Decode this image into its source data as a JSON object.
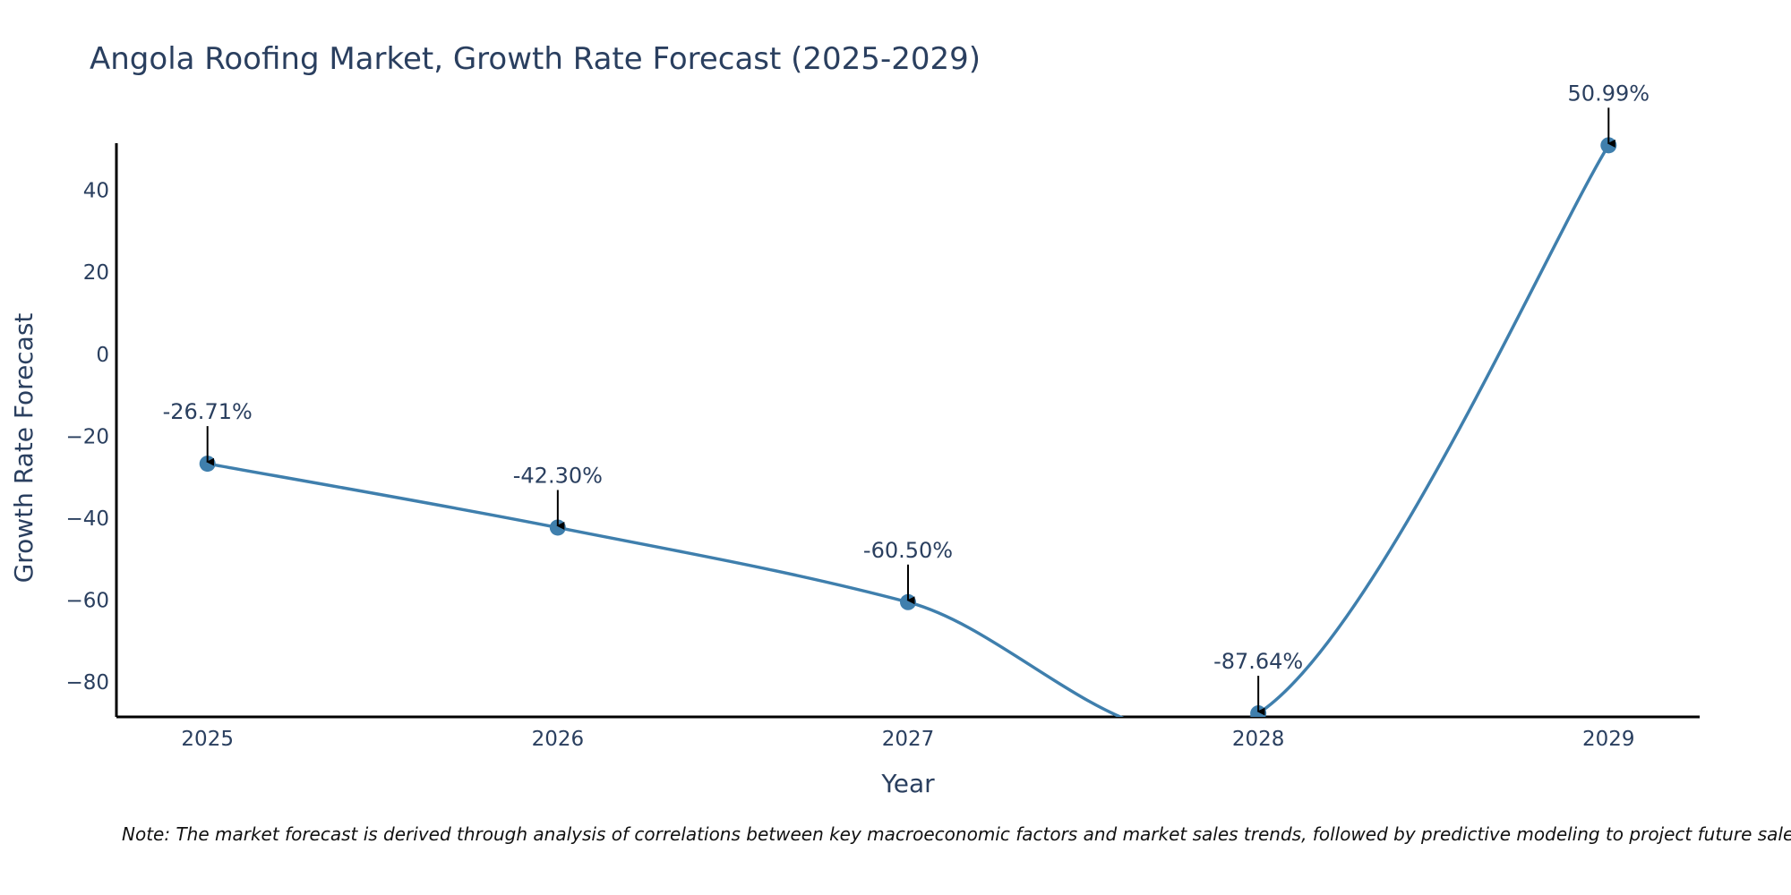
{
  "chart_data": {
    "type": "line",
    "title": "Angola Roofing Market, Growth Rate Forecast (2025-2029)",
    "xlabel": "Year",
    "ylabel": "Growth Rate Forecast",
    "categories": [
      "2025",
      "2026",
      "2027",
      "2028",
      "2029"
    ],
    "values": [
      -26.71,
      -42.3,
      -60.5,
      -87.64,
      50.99
    ],
    "data_labels": [
      "-26.71%",
      "-42.30%",
      "-60.50%",
      "-87.64%",
      "50.99%"
    ],
    "yticks": [
      40,
      20,
      0,
      -20,
      -40,
      -60,
      -80
    ],
    "ytick_labels": [
      "40",
      "20",
      "0",
      "−20",
      "−40",
      "−60",
      "−80"
    ],
    "ylim": [
      -88.5,
      51.5
    ],
    "xlim": [
      -0.26,
      4.26
    ],
    "line_color": "#3f7fad",
    "arrow_color": "#000000",
    "grid": false,
    "note": "Note: The market forecast is derived through analysis of correlations between key macroeconomic factors and market sales trends, followed by predictive modeling to project future sales"
  }
}
